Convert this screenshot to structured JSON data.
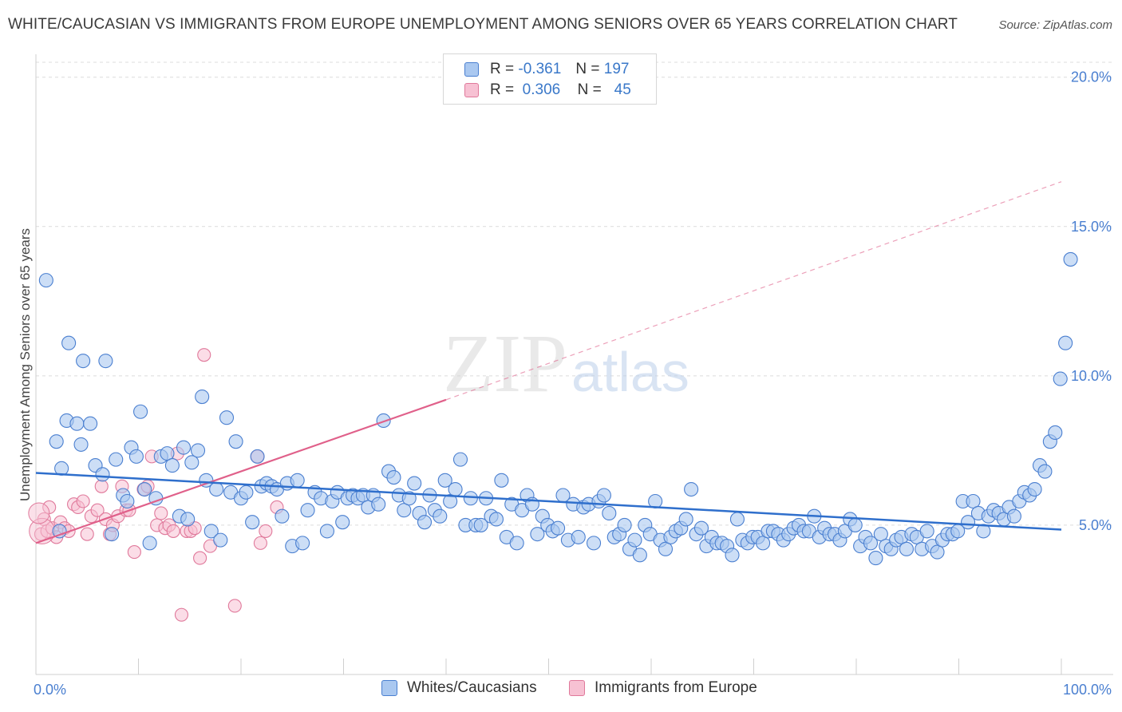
{
  "header": {
    "title": "WHITE/CAUCASIAN VS IMMIGRANTS FROM EUROPE UNEMPLOYMENT AMONG SENIORS OVER 65 YEARS CORRELATION CHART",
    "source": "Source: ZipAtlas.com"
  },
  "legend": {
    "rows": [
      {
        "r_label": "R =",
        "r_value": "-0.361",
        "n_label": "N =",
        "n_value": "197"
      },
      {
        "r_label": "R =",
        "r_value": "0.306",
        "n_label": "N =",
        "n_value": "45"
      }
    ]
  },
  "watermark": {
    "zip": "ZIP",
    "atlas": "atlas"
  },
  "colors": {
    "blue_fill": "#aac8f0",
    "blue_stroke": "#4a7fd0",
    "blue_line": "#2f6fcc",
    "pink_fill": "#f7c1d3",
    "pink_stroke": "#e0799b",
    "pink_line": "#e0608a",
    "tick_text": "#4a7fd0"
  },
  "chart_data": {
    "type": "scatter",
    "title": "WHITE/CAUCASIAN VS IMMIGRANTS FROM EUROPE UNEMPLOYMENT AMONG SENIORS OVER 65 YEARS CORRELATION CHART",
    "ylabel": "Unemployment Among Seniors over 65 years",
    "xlabel": "",
    "xlim": [
      0,
      100
    ],
    "ylim": [
      0,
      20.5
    ],
    "x_tick_labels": [
      "0.0%",
      "100.0%"
    ],
    "y_ticks": [
      5,
      10,
      15,
      20
    ],
    "y_tick_labels": [
      "5.0%",
      "10.0%",
      "15.0%",
      "20.0%"
    ],
    "grid": "horizontal dashed",
    "legend_position": "bottom",
    "series": [
      {
        "name": "Whites/Caucasians",
        "R": -0.361,
        "N": 197,
        "trend": {
          "x": [
            0,
            100
          ],
          "y": [
            6.75,
            4.85
          ]
        },
        "points": [
          [
            1,
            13.2
          ],
          [
            2,
            7.8
          ],
          [
            2.3,
            4.8
          ],
          [
            2.5,
            6.9
          ],
          [
            3,
            8.5
          ],
          [
            3.2,
            11.1
          ],
          [
            4,
            8.4
          ],
          [
            4.4,
            7.7
          ],
          [
            4.6,
            10.5
          ],
          [
            5.3,
            8.4
          ],
          [
            5.8,
            7.0
          ],
          [
            6.5,
            6.7
          ],
          [
            6.8,
            10.5
          ],
          [
            7.4,
            4.7
          ],
          [
            7.8,
            7.2
          ],
          [
            8.5,
            6.0
          ],
          [
            8.9,
            5.8
          ],
          [
            9.3,
            7.6
          ],
          [
            9.8,
            7.3
          ],
          [
            10.2,
            8.8
          ],
          [
            10.6,
            6.2
          ],
          [
            11.1,
            4.4
          ],
          [
            11.7,
            5.9
          ],
          [
            12.2,
            7.3
          ],
          [
            12.8,
            7.4
          ],
          [
            13.3,
            7.0
          ],
          [
            14.0,
            5.3
          ],
          [
            14.4,
            7.6
          ],
          [
            14.8,
            5.2
          ],
          [
            15.2,
            7.1
          ],
          [
            15.8,
            7.5
          ],
          [
            16.2,
            9.3
          ],
          [
            16.6,
            6.5
          ],
          [
            17.1,
            4.8
          ],
          [
            17.6,
            6.2
          ],
          [
            18.0,
            4.5
          ],
          [
            18.6,
            8.6
          ],
          [
            19.0,
            6.1
          ],
          [
            19.5,
            7.8
          ],
          [
            20.0,
            5.9
          ],
          [
            20.5,
            6.1
          ],
          [
            21.1,
            5.1
          ],
          [
            21.6,
            7.3
          ],
          [
            22.0,
            6.3
          ],
          [
            22.5,
            6.4
          ],
          [
            23.0,
            6.3
          ],
          [
            23.5,
            6.2
          ],
          [
            24.0,
            5.3
          ],
          [
            24.5,
            6.4
          ],
          [
            25.0,
            4.3
          ],
          [
            25.5,
            6.5
          ],
          [
            26.0,
            4.4
          ],
          [
            26.5,
            5.5
          ],
          [
            27.2,
            6.1
          ],
          [
            27.8,
            5.9
          ],
          [
            28.4,
            4.8
          ],
          [
            28.9,
            5.8
          ],
          [
            29.4,
            6.1
          ],
          [
            29.9,
            5.1
          ],
          [
            30.4,
            5.9
          ],
          [
            30.9,
            6.0
          ],
          [
            31.4,
            5.9
          ],
          [
            31.9,
            6.0
          ],
          [
            32.4,
            5.6
          ],
          [
            32.9,
            6.0
          ],
          [
            33.4,
            5.7
          ],
          [
            33.9,
            8.5
          ],
          [
            34.4,
            6.8
          ],
          [
            34.9,
            6.6
          ],
          [
            35.4,
            6.0
          ],
          [
            35.9,
            5.5
          ],
          [
            36.4,
            5.9
          ],
          [
            36.9,
            6.4
          ],
          [
            37.4,
            5.4
          ],
          [
            37.9,
            5.1
          ],
          [
            38.4,
            6.0
          ],
          [
            38.9,
            5.5
          ],
          [
            39.4,
            5.3
          ],
          [
            39.9,
            6.5
          ],
          [
            40.4,
            5.8
          ],
          [
            40.9,
            6.2
          ],
          [
            41.4,
            7.2
          ],
          [
            41.9,
            5.0
          ],
          [
            42.4,
            5.9
          ],
          [
            42.9,
            5.0
          ],
          [
            43.4,
            5.0
          ],
          [
            43.9,
            5.9
          ],
          [
            44.4,
            5.3
          ],
          [
            44.9,
            5.2
          ],
          [
            45.4,
            6.5
          ],
          [
            45.9,
            4.6
          ],
          [
            46.4,
            5.7
          ],
          [
            46.9,
            4.4
          ],
          [
            47.4,
            5.5
          ],
          [
            47.9,
            6.0
          ],
          [
            48.4,
            5.7
          ],
          [
            48.9,
            4.7
          ],
          [
            49.4,
            5.3
          ],
          [
            49.9,
            5.0
          ],
          [
            50.4,
            4.8
          ],
          [
            50.9,
            4.9
          ],
          [
            51.4,
            6.0
          ],
          [
            51.9,
            4.5
          ],
          [
            52.4,
            5.7
          ],
          [
            52.9,
            4.6
          ],
          [
            53.4,
            5.6
          ],
          [
            53.9,
            5.7
          ],
          [
            54.4,
            4.4
          ],
          [
            54.9,
            5.8
          ],
          [
            55.4,
            6.0
          ],
          [
            55.9,
            5.4
          ],
          [
            56.4,
            4.6
          ],
          [
            56.9,
            4.7
          ],
          [
            57.4,
            5.0
          ],
          [
            57.9,
            4.2
          ],
          [
            58.4,
            4.5
          ],
          [
            58.9,
            4.0
          ],
          [
            59.4,
            5.0
          ],
          [
            59.9,
            4.7
          ],
          [
            60.4,
            5.8
          ],
          [
            60.9,
            4.5
          ],
          [
            61.4,
            4.2
          ],
          [
            61.9,
            4.6
          ],
          [
            62.4,
            4.8
          ],
          [
            62.9,
            4.9
          ],
          [
            63.4,
            5.2
          ],
          [
            63.9,
            6.2
          ],
          [
            64.4,
            4.7
          ],
          [
            64.9,
            4.9
          ],
          [
            65.4,
            4.3
          ],
          [
            65.9,
            4.6
          ],
          [
            66.4,
            4.4
          ],
          [
            66.9,
            4.4
          ],
          [
            67.4,
            4.3
          ],
          [
            67.9,
            4.0
          ],
          [
            68.4,
            5.2
          ],
          [
            68.9,
            4.5
          ],
          [
            69.4,
            4.4
          ],
          [
            69.9,
            4.6
          ],
          [
            70.4,
            4.6
          ],
          [
            70.9,
            4.4
          ],
          [
            71.4,
            4.8
          ],
          [
            71.9,
            4.8
          ],
          [
            72.4,
            4.7
          ],
          [
            72.9,
            4.5
          ],
          [
            73.4,
            4.7
          ],
          [
            73.9,
            4.9
          ],
          [
            74.4,
            5.0
          ],
          [
            74.9,
            4.8
          ],
          [
            75.4,
            4.8
          ],
          [
            75.9,
            5.3
          ],
          [
            76.4,
            4.6
          ],
          [
            76.9,
            4.9
          ],
          [
            77.4,
            4.7
          ],
          [
            77.9,
            4.7
          ],
          [
            78.4,
            4.5
          ],
          [
            78.9,
            4.8
          ],
          [
            79.4,
            5.2
          ],
          [
            79.9,
            5.0
          ],
          [
            80.4,
            4.3
          ],
          [
            80.9,
            4.6
          ],
          [
            81.4,
            4.4
          ],
          [
            81.9,
            3.9
          ],
          [
            82.4,
            4.7
          ],
          [
            82.9,
            4.3
          ],
          [
            83.4,
            4.2
          ],
          [
            83.9,
            4.5
          ],
          [
            84.4,
            4.6
          ],
          [
            84.9,
            4.2
          ],
          [
            85.4,
            4.7
          ],
          [
            85.9,
            4.6
          ],
          [
            86.4,
            4.2
          ],
          [
            86.9,
            4.8
          ],
          [
            87.4,
            4.3
          ],
          [
            87.9,
            4.1
          ],
          [
            88.4,
            4.5
          ],
          [
            88.9,
            4.7
          ],
          [
            89.4,
            4.7
          ],
          [
            89.9,
            4.8
          ],
          [
            90.4,
            5.8
          ],
          [
            90.9,
            5.1
          ],
          [
            91.4,
            5.8
          ],
          [
            91.9,
            5.4
          ],
          [
            92.4,
            4.8
          ],
          [
            92.9,
            5.3
          ],
          [
            93.4,
            5.5
          ],
          [
            93.9,
            5.4
          ],
          [
            94.4,
            5.2
          ],
          [
            94.9,
            5.6
          ],
          [
            95.4,
            5.3
          ],
          [
            95.9,
            5.8
          ],
          [
            96.4,
            6.1
          ],
          [
            96.9,
            6.0
          ],
          [
            97.4,
            6.2
          ],
          [
            97.9,
            7.0
          ],
          [
            98.4,
            6.8
          ],
          [
            98.9,
            7.8
          ],
          [
            99.4,
            8.1
          ],
          [
            99.9,
            9.9
          ],
          [
            100.4,
            11.1
          ],
          [
            100.9,
            13.9
          ]
        ]
      },
      {
        "name": "Immigrants from Europe",
        "R": 0.306,
        "N": 45,
        "trend_solid": {
          "x": [
            0,
            40
          ],
          "y": [
            4.4,
            9.2
          ]
        },
        "trend_dashed": {
          "x": [
            40,
            100
          ],
          "y": [
            9.2,
            16.5
          ]
        },
        "points": [
          [
            0.5,
            4.7
          ],
          [
            0.8,
            5.2
          ],
          [
            1.1,
            4.8
          ],
          [
            1.3,
            5.6
          ],
          [
            1.6,
            4.9
          ],
          [
            2.0,
            4.6
          ],
          [
            2.4,
            5.1
          ],
          [
            2.8,
            4.9
          ],
          [
            3.2,
            4.8
          ],
          [
            3.7,
            5.7
          ],
          [
            4.1,
            5.6
          ],
          [
            4.6,
            5.8
          ],
          [
            5.0,
            4.7
          ],
          [
            5.4,
            5.3
          ],
          [
            6.0,
            5.5
          ],
          [
            6.4,
            6.3
          ],
          [
            6.8,
            5.2
          ],
          [
            7.2,
            4.7
          ],
          [
            7.5,
            5.0
          ],
          [
            8.0,
            5.3
          ],
          [
            8.4,
            6.3
          ],
          [
            8.8,
            5.5
          ],
          [
            9.1,
            5.5
          ],
          [
            9.6,
            4.1
          ],
          [
            10.5,
            6.2
          ],
          [
            10.9,
            6.3
          ],
          [
            11.3,
            7.3
          ],
          [
            11.8,
            5.0
          ],
          [
            12.2,
            5.4
          ],
          [
            12.6,
            4.9
          ],
          [
            13.0,
            5.0
          ],
          [
            13.4,
            4.8
          ],
          [
            13.8,
            7.4
          ],
          [
            14.2,
            2.0
          ],
          [
            14.7,
            4.8
          ],
          [
            15.1,
            4.8
          ],
          [
            15.5,
            4.9
          ],
          [
            16.0,
            3.9
          ],
          [
            16.4,
            10.7
          ],
          [
            17.0,
            4.3
          ],
          [
            19.4,
            2.3
          ],
          [
            21.6,
            7.3
          ],
          [
            21.9,
            4.4
          ],
          [
            22.4,
            4.8
          ],
          [
            23.5,
            5.6
          ]
        ]
      }
    ]
  },
  "bottom_legend": {
    "items": [
      {
        "label": "Whites/Caucasians"
      },
      {
        "label": "Immigrants from Europe"
      }
    ]
  }
}
